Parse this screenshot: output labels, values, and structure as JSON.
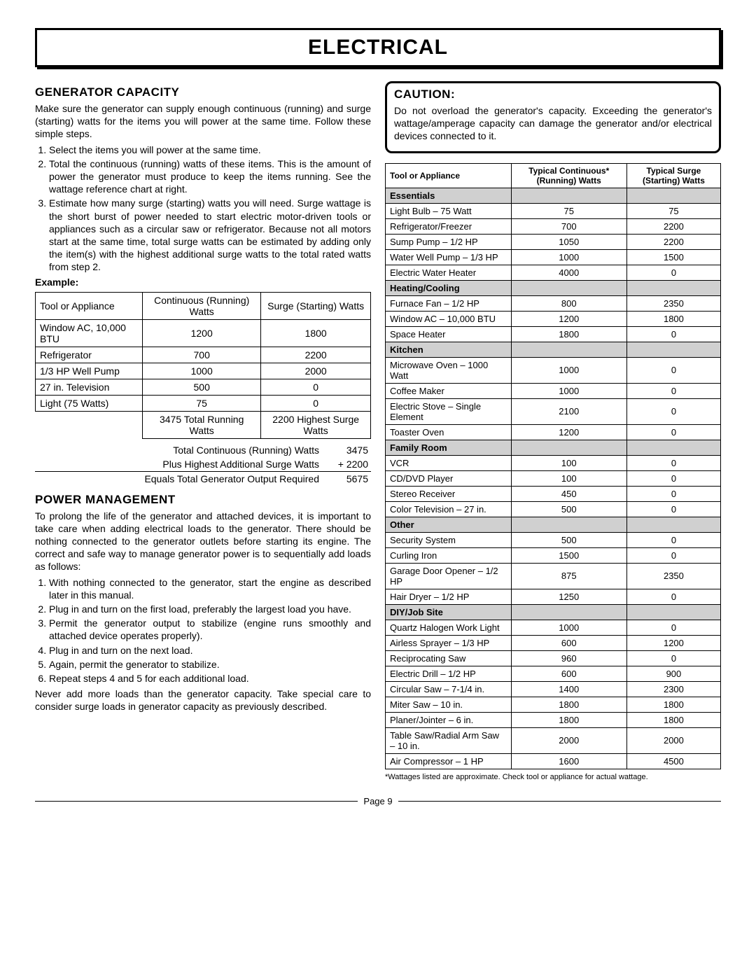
{
  "page": {
    "title": "ELECTRICAL",
    "footer": "Page 9"
  },
  "leftCol": {
    "genCapacity": {
      "heading": "GENERATOR CAPACITY",
      "intro": "Make sure the generator can supply enough continuous (running) and surge (starting) watts for the items you will power at the same time. Follow these simple steps.",
      "steps": [
        "Select the items you will power at the same time.",
        "Total the continuous (running) watts of these items. This is the amount of power the generator must produce to keep the items running. See the wattage reference chart at right.",
        "Estimate how many surge (starting) watts you will need. Surge wattage is the short burst of power needed to start electric motor-driven tools or appliances such as a circular saw or refrigerator. Because not all motors start at the same time, total surge watts can be estimated by adding only the item(s) with the highest additional surge watts to the total rated watts from step 2."
      ],
      "exampleLabel": "Example:",
      "exampleTable": {
        "headers": [
          "Tool or Appliance",
          "Continuous (Running) Watts",
          "Surge (Starting) Watts"
        ],
        "rows": [
          [
            "Window AC, 10,000 BTU",
            "1200",
            "1800"
          ],
          [
            "Refrigerator",
            "700",
            "2200"
          ],
          [
            "1/3 HP Well Pump",
            "1000",
            "2000"
          ],
          [
            "27 in. Television",
            "500",
            "0"
          ],
          [
            "Light (75 Watts)",
            "75",
            "0"
          ]
        ],
        "totalsRow": [
          "",
          "3475 Total Running Watts",
          "2200 Highest Surge Watts"
        ]
      },
      "calc": {
        "line1Label": "Total Continuous (Running) Watts",
        "line1Val": "3475",
        "line2Label": "Plus Highest Additional Surge Watts",
        "line2Val": "+ 2200",
        "line3Label": "Equals Total Generator Output Required",
        "line3Val": "5675"
      }
    },
    "powerMgmt": {
      "heading": "POWER MANAGEMENT",
      "intro": "To prolong the life of the generator and attached devices, it is important to take care when adding electrical loads to the generator. There should be nothing connected to the generator outlets before starting its engine. The correct and safe way to manage generator power is to sequentially add loads as follows:",
      "steps": [
        "With nothing connected to the generator, start the engine as described later in this manual.",
        "Plug in and turn on the first load, preferably the largest load you have.",
        "Permit the generator output to stabilize (engine runs smoothly and attached device operates properly).",
        "Plug in and turn on the next load.",
        "Again, permit the generator to stabilize.",
        "Repeat steps 4 and 5 for each additional load."
      ],
      "closing": "Never add more loads than the generator capacity. Take special care to consider surge loads in generator capacity as previously described."
    }
  },
  "rightCol": {
    "caution": {
      "heading": "CAUTION:",
      "text": "Do not overload the generator's capacity. Exceeding the generator's wattage/amperage capacity can damage the generator and/or electrical devices connected to it."
    },
    "wattageTable": {
      "headers": [
        "Tool or Appliance",
        "Typical Continuous* (Running) Watts",
        "Typical Surge (Starting) Watts"
      ],
      "categories": [
        {
          "name": "Essentials",
          "rows": [
            [
              "Light Bulb – 75 Watt",
              "75",
              "75"
            ],
            [
              "Refrigerator/Freezer",
              "700",
              "2200"
            ],
            [
              "Sump Pump – 1/2 HP",
              "1050",
              "2200"
            ],
            [
              "Water Well Pump – 1/3 HP",
              "1000",
              "1500"
            ],
            [
              "Electric Water Heater",
              "4000",
              "0"
            ]
          ]
        },
        {
          "name": "Heating/Cooling",
          "rows": [
            [
              "Furnace Fan – 1/2 HP",
              "800",
              "2350"
            ],
            [
              "Window AC – 10,000 BTU",
              "1200",
              "1800"
            ],
            [
              "Space Heater",
              "1800",
              "0"
            ]
          ]
        },
        {
          "name": "Kitchen",
          "rows": [
            [
              "Microwave Oven – 1000 Watt",
              "1000",
              "0"
            ],
            [
              "Coffee Maker",
              "1000",
              "0"
            ],
            [
              "Electric Stove – Single Element",
              "2100",
              "0"
            ],
            [
              "Toaster Oven",
              "1200",
              "0"
            ]
          ]
        },
        {
          "name": "Family Room",
          "rows": [
            [
              "VCR",
              "100",
              "0"
            ],
            [
              "CD/DVD Player",
              "100",
              "0"
            ],
            [
              "Stereo Receiver",
              "450",
              "0"
            ],
            [
              "Color Television – 27 in.",
              "500",
              "0"
            ]
          ]
        },
        {
          "name": "Other",
          "rows": [
            [
              "Security System",
              "500",
              "0"
            ],
            [
              "Curling Iron",
              "1500",
              "0"
            ],
            [
              "Garage Door Opener – 1/2 HP",
              "875",
              "2350"
            ],
            [
              "Hair Dryer – 1/2 HP",
              "1250",
              "0"
            ]
          ]
        },
        {
          "name": "DIY/Job Site",
          "rows": [
            [
              "Quartz Halogen Work Light",
              "1000",
              "0"
            ],
            [
              "Airless Sprayer – 1/3 HP",
              "600",
              "1200"
            ],
            [
              "Reciprocating Saw",
              "960",
              "0"
            ],
            [
              "Electric Drill – 1/2 HP",
              "600",
              "900"
            ],
            [
              "Circular Saw – 7-1/4 in.",
              "1400",
              "2300"
            ],
            [
              "Miter Saw – 10 in.",
              "1800",
              "1800"
            ],
            [
              "Planer/Jointer – 6 in.",
              "1800",
              "1800"
            ],
            [
              "Table Saw/Radial Arm Saw – 10 in.",
              "2000",
              "2000"
            ],
            [
              "Air Compressor – 1 HP",
              "1600",
              "4500"
            ]
          ]
        }
      ],
      "footnote": "*Wattages listed are approximate. Check tool or appliance for actual wattage."
    }
  }
}
